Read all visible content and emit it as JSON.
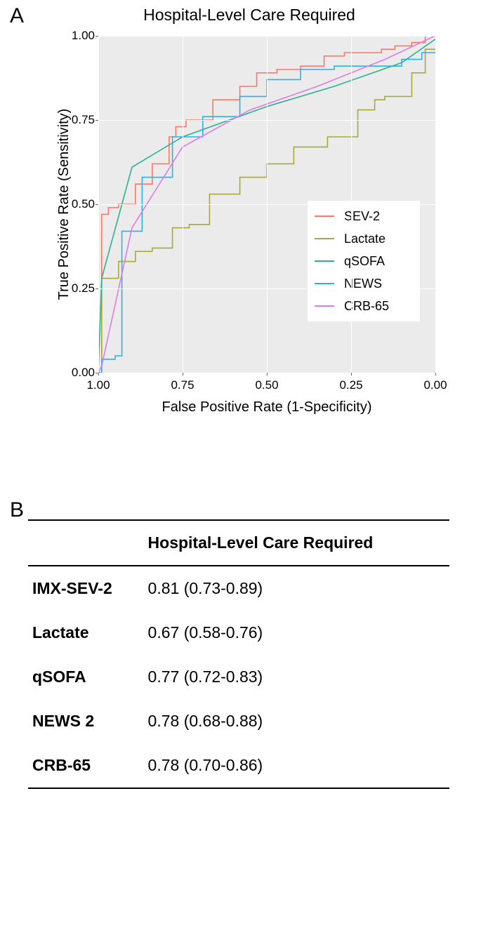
{
  "panelA": {
    "label": "A",
    "chart": {
      "type": "line",
      "title": "Hospital-Level Care Required",
      "title_fontsize": 23,
      "xlabel": "False Positive Rate (1-Specificity)",
      "ylabel": "True Positive Rate (Sensitivity)",
      "label_fontsize": 20,
      "tick_fontsize": 17,
      "background_color": "#ebebeb",
      "grid_color": "#ffffff",
      "xlim": [
        1.0,
        0.0
      ],
      "ylim": [
        0.0,
        1.0
      ],
      "x_reversed": true,
      "xticks": [
        1.0,
        0.75,
        0.5,
        0.25,
        0.0
      ],
      "yticks": [
        0.0,
        0.25,
        0.5,
        0.75,
        1.0
      ],
      "line_width": 1.6,
      "legend": {
        "position": "right-center",
        "background": "#ffffff",
        "fontsize": 18,
        "items": [
          {
            "label": "SEV-2",
            "color": "#f57b67"
          },
          {
            "label": "Lactate",
            "color": "#a8a83b"
          },
          {
            "label": "qSOFA",
            "color": "#2bb18f"
          },
          {
            "label": "NEWS",
            "color": "#2fb0e6"
          },
          {
            "label": "CRB-65",
            "color": "#e07be6"
          }
        ]
      },
      "series": [
        {
          "name": "SEV-2",
          "color": "#f57b67",
          "x": [
            1.0,
            0.99,
            0.99,
            0.97,
            0.97,
            0.94,
            0.94,
            0.89,
            0.89,
            0.84,
            0.84,
            0.79,
            0.79,
            0.77,
            0.77,
            0.74,
            0.74,
            0.66,
            0.66,
            0.58,
            0.58,
            0.53,
            0.53,
            0.47,
            0.47,
            0.4,
            0.4,
            0.33,
            0.33,
            0.27,
            0.27,
            0.21,
            0.21,
            0.16,
            0.16,
            0.12,
            0.12,
            0.07,
            0.07,
            0.03,
            0.03,
            0.0
          ],
          "y": [
            0.0,
            0.0,
            0.47,
            0.47,
            0.49,
            0.49,
            0.5,
            0.5,
            0.56,
            0.56,
            0.62,
            0.62,
            0.7,
            0.7,
            0.73,
            0.73,
            0.75,
            0.75,
            0.81,
            0.81,
            0.85,
            0.85,
            0.89,
            0.89,
            0.9,
            0.9,
            0.91,
            0.91,
            0.94,
            0.94,
            0.95,
            0.95,
            0.95,
            0.95,
            0.96,
            0.96,
            0.97,
            0.97,
            0.98,
            0.98,
            1.0,
            1.0
          ]
        },
        {
          "name": "Lactate",
          "color": "#a8a83b",
          "x": [
            1.0,
            0.99,
            0.99,
            0.94,
            0.94,
            0.89,
            0.89,
            0.84,
            0.84,
            0.78,
            0.78,
            0.73,
            0.73,
            0.67,
            0.67,
            0.58,
            0.58,
            0.5,
            0.5,
            0.42,
            0.42,
            0.32,
            0.32,
            0.23,
            0.23,
            0.18,
            0.18,
            0.15,
            0.15,
            0.12,
            0.12,
            0.07,
            0.07,
            0.03,
            0.03,
            0.0
          ],
          "y": [
            0.0,
            0.0,
            0.28,
            0.28,
            0.33,
            0.33,
            0.36,
            0.36,
            0.37,
            0.37,
            0.43,
            0.43,
            0.44,
            0.44,
            0.53,
            0.53,
            0.58,
            0.58,
            0.62,
            0.62,
            0.67,
            0.67,
            0.7,
            0.7,
            0.78,
            0.78,
            0.81,
            0.81,
            0.82,
            0.82,
            0.82,
            0.82,
            0.89,
            0.89,
            0.96,
            0.96
          ]
        },
        {
          "name": "qSOFA",
          "color": "#2bb18f",
          "x": [
            1.0,
            0.99,
            0.9,
            0.75,
            0.5,
            0.3,
            0.1,
            0.0
          ],
          "y": [
            0.0,
            0.28,
            0.61,
            0.7,
            0.79,
            0.85,
            0.92,
            0.99
          ]
        },
        {
          "name": "NEWS",
          "color": "#2fb0e6",
          "x": [
            1.0,
            0.99,
            0.99,
            0.95,
            0.95,
            0.93,
            0.93,
            0.87,
            0.87,
            0.78,
            0.78,
            0.69,
            0.69,
            0.58,
            0.58,
            0.5,
            0.5,
            0.4,
            0.4,
            0.3,
            0.3,
            0.2,
            0.2,
            0.1,
            0.1,
            0.04,
            0.04,
            0.0
          ],
          "y": [
            0.0,
            0.0,
            0.04,
            0.04,
            0.05,
            0.05,
            0.42,
            0.42,
            0.58,
            0.58,
            0.7,
            0.7,
            0.76,
            0.76,
            0.82,
            0.82,
            0.87,
            0.87,
            0.9,
            0.9,
            0.91,
            0.91,
            0.91,
            0.91,
            0.93,
            0.93,
            0.95,
            0.95
          ]
        },
        {
          "name": "CRB-65",
          "color": "#e07be6",
          "x": [
            1.0,
            0.99,
            0.9,
            0.75,
            0.55,
            0.35,
            0.15,
            0.0
          ],
          "y": [
            0.0,
            0.02,
            0.43,
            0.67,
            0.78,
            0.85,
            0.93,
            1.0
          ]
        }
      ]
    }
  },
  "panelB": {
    "label": "B",
    "table": {
      "header_fontsize": 23,
      "cell_fontsize": 23,
      "columns": [
        "",
        "Hospital-Level Care Required"
      ],
      "rows": [
        {
          "label": "IMX-SEV-2",
          "value": "0.81 (0.73-0.89)"
        },
        {
          "label": "Lactate",
          "value": "0.67 (0.58-0.76)"
        },
        {
          "label": "qSOFA",
          "value": "0.77 (0.72-0.83)"
        },
        {
          "label": "NEWS 2",
          "value": "0.78 (0.68-0.88)"
        },
        {
          "label": "CRB-65",
          "value": "0.78 (0.70-0.86)"
        }
      ]
    }
  }
}
